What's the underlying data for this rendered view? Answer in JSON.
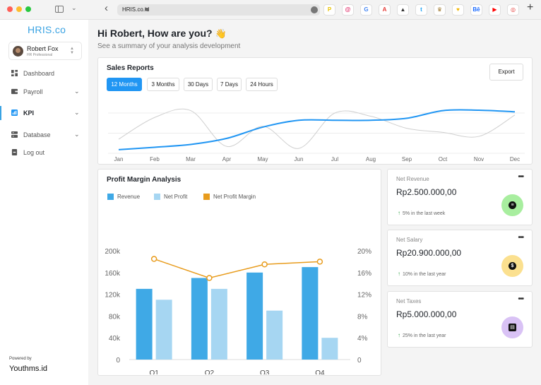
{
  "browser": {
    "url": "HRIS.co.id",
    "favicons": [
      "P",
      "@",
      "G",
      "A",
      "▲",
      "t",
      "♛",
      "♥",
      "Bē",
      "▶",
      "◎"
    ],
    "fav_colors": [
      "#e8c200",
      "#e1306c",
      "#4285f4",
      "#e53935",
      "#333333",
      "#1da1f2",
      "#a07a30",
      "#f2b705",
      "#1769ff",
      "#ff0000",
      "#e53935"
    ]
  },
  "sidebar": {
    "brand": "HRIS.co",
    "user": {
      "name": "Robert Fox",
      "role": "HR Professional"
    },
    "items": [
      {
        "label": "Dashboard",
        "icon": "grid-icon"
      },
      {
        "label": "Payroll",
        "icon": "wallet-icon"
      },
      {
        "label": "KPI",
        "icon": "bar-chart-icon"
      },
      {
        "label": "Database",
        "icon": "database-icon"
      },
      {
        "label": "Log out",
        "icon": "logout-icon"
      }
    ],
    "powered_by": "Powered by",
    "powered_brand": "Youthms.id"
  },
  "header": {
    "greeting": "Hi Robert, How are you?",
    "wave": "👋",
    "subtitle": "See a summary of your analysis development"
  },
  "sales": {
    "title": "Sales Reports",
    "export_label": "Export",
    "tabs": [
      "12 Months",
      "3 Months",
      "30 Days",
      "7 Days",
      "24 Hours"
    ],
    "active_tab": "12 Months"
  },
  "profit": {
    "title": "Profit Margin Analysis",
    "legend": [
      "Revenue",
      "Net Profit",
      "Net Profit Margin"
    ]
  },
  "stats": [
    {
      "label": "Net Revenue",
      "value": "Rp2.500.000,00",
      "change": "5% in the last week",
      "more": "•••"
    },
    {
      "label": "Net Salary",
      "value": "Rp20.900.000,00",
      "change": "10% in the last year",
      "more": "•••"
    },
    {
      "label": "Net Taxes",
      "value": "Rp5.000.000,00",
      "change": "25% in the last year",
      "more": "•••"
    }
  ],
  "colors": {
    "accent": "#2196f3",
    "revenue": "#3fa9e6",
    "net_profit": "#a6d6f2",
    "margin": "#e89c1d",
    "gray_line": "#cfcfcf"
  },
  "chart_data": [
    {
      "type": "line",
      "title": "Sales Reports",
      "categories": [
        "Jan",
        "Feb",
        "Mar",
        "Apr",
        "May",
        "Jun",
        "Jul",
        "Aug",
        "Sep",
        "Oct",
        "Nov",
        "Dec"
      ],
      "ylim": [
        0,
        100
      ],
      "grid": true,
      "series": [
        {
          "name": "current",
          "color": "#2196f3",
          "values": [
            2,
            8,
            15,
            30,
            58,
            75,
            75,
            75,
            80,
            99,
            100,
            96
          ]
        },
        {
          "name": "previous",
          "color": "#cfcfcf",
          "values": [
            28,
            82,
            99,
            10,
            60,
            5,
            93,
            85,
            55,
            45,
            35,
            88
          ]
        }
      ]
    },
    {
      "type": "bar",
      "title": "Profit Margin Analysis",
      "categories": [
        "Q1",
        "Q2",
        "Q3",
        "Q4"
      ],
      "ylim": [
        0,
        200000
      ],
      "yticks": [
        "0",
        "40k",
        "80k",
        "120k",
        "160k",
        "200k"
      ],
      "y2lim": [
        0,
        20
      ],
      "y2ticks": [
        "0",
        "4%",
        "8%",
        "12%",
        "16%",
        "20%"
      ],
      "series": [
        {
          "name": "Revenue",
          "color": "#3fa9e6",
          "values": [
            130000,
            150000,
            160000,
            170000
          ]
        },
        {
          "name": "Net Profit",
          "color": "#a6d6f2",
          "values": [
            110000,
            130000,
            90000,
            40000
          ]
        },
        {
          "name": "Net Profit Margin",
          "color": "#e89c1d",
          "type": "line",
          "axis": "right",
          "values": [
            18.5,
            15,
            17.5,
            18
          ]
        }
      ]
    }
  ]
}
